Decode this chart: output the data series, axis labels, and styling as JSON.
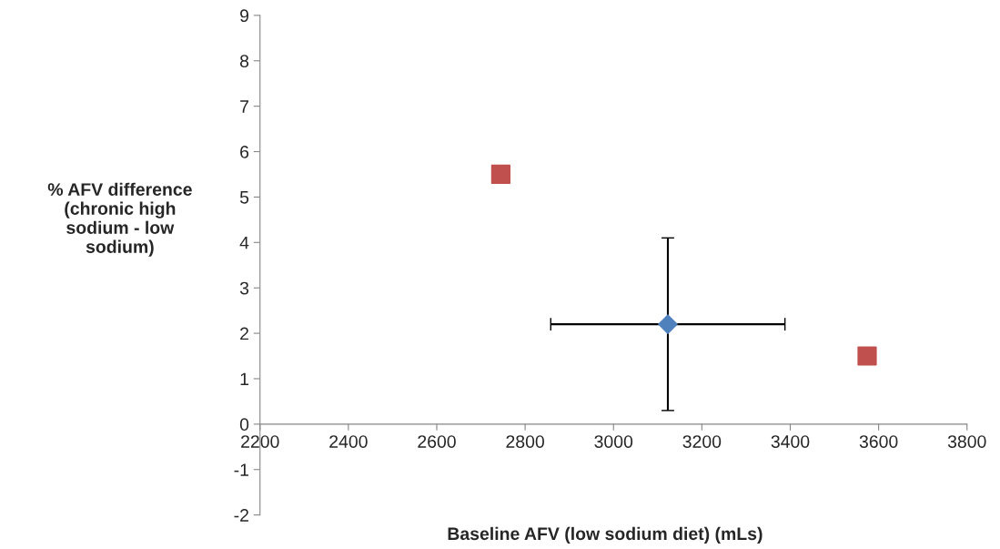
{
  "chart_data": {
    "type": "scatter",
    "xlabel": "Baseline AFV (low sodium diet) (mLs)",
    "ylabel": "% AFV difference\n(chronic high\nsodium - low\nsodium)",
    "xlim": [
      2200,
      3800
    ],
    "xticks": [
      2200,
      2400,
      2600,
      2800,
      3000,
      3200,
      3400,
      3600,
      3800
    ],
    "ylim": [
      -2,
      9
    ],
    "yticks": [
      -2,
      -1,
      0,
      1,
      2,
      3,
      4,
      5,
      6,
      7,
      8,
      9
    ],
    "grid": false,
    "legend": false,
    "series": [
      {
        "color": "#c0504d",
        "marker": "square",
        "x": [
          2745,
          3574
        ],
        "values": [
          5.5,
          1.5
        ]
      },
      {
        "color": "#4f81bd",
        "marker": "diamond",
        "x": [
          3123
        ],
        "values": [
          2.2
        ],
        "errors": [
          1.9
        ],
        "xerrors": [
          265
        ]
      }
    ]
  }
}
